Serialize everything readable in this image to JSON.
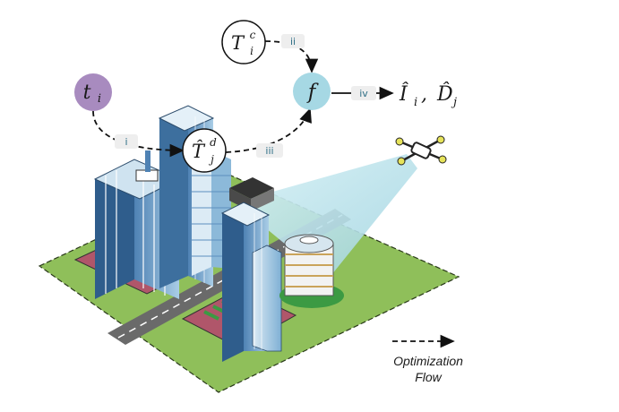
{
  "nodes": {
    "t_i": {
      "base": "t",
      "sub": "i",
      "color": "#a88bbf"
    },
    "T_c": {
      "base": "T",
      "sup": "c",
      "sub": "i"
    },
    "T_d": {
      "base": "T̂",
      "sup": "d",
      "sub": "j"
    },
    "f": {
      "label": "f",
      "color": "#a6d8e4"
    }
  },
  "steps": {
    "i": "i",
    "ii": "ii",
    "iii": "iii",
    "iv": "iv"
  },
  "output": {
    "I_hat": "Î",
    "I_sub": "i",
    "sep": ",",
    "D_hat": "D̂",
    "D_sub": "j"
  },
  "legend": {
    "line1": "Optimization",
    "line2": "Flow"
  },
  "colors": {
    "ground": "#8fbf5a",
    "road": "#666666",
    "building": "#6d9fc6",
    "beam": "#bfe6ee"
  }
}
